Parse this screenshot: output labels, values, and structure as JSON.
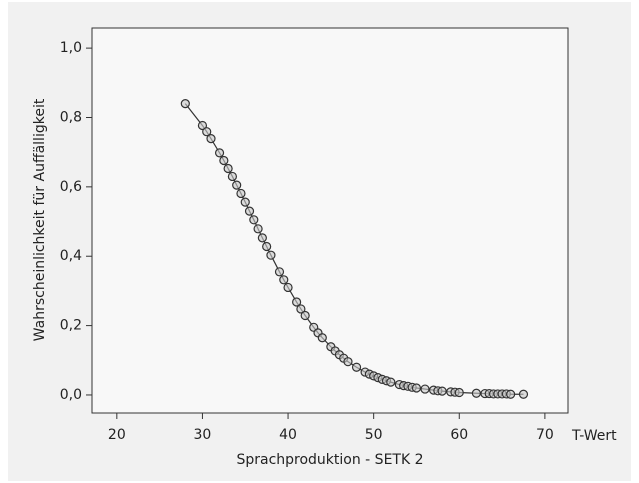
{
  "chart_data": {
    "type": "line",
    "y_label": "Wahrscheinlichkeit für Auffälligkeit",
    "x_label": "Sprachproduktion - SETK 2",
    "x_unit": "T-Wert",
    "x": [
      28,
      30,
      30.5,
      31,
      32,
      32.5,
      33,
      33.5,
      34,
      34.5,
      35,
      35.5,
      36,
      36.5,
      37,
      37.5,
      38,
      39,
      39.5,
      40,
      41,
      41.5,
      42,
      43,
      43.5,
      44,
      45,
      45.5,
      46,
      46.5,
      47,
      48,
      49,
      49.5,
      50,
      50.5,
      51,
      51.5,
      52,
      53,
      53.5,
      54,
      54.5,
      55,
      56,
      57,
      57.5,
      58,
      59,
      59.5,
      60,
      62,
      63,
      63.5,
      64,
      64.5,
      65,
      65.5,
      66,
      67.5
    ],
    "series": [
      {
        "color": "#333333",
        "values": [
          0.84,
          0.777,
          0.759,
          0.739,
          0.698,
          0.676,
          0.653,
          0.63,
          0.605,
          0.581,
          0.556,
          0.53,
          0.505,
          0.479,
          0.453,
          0.428,
          0.403,
          0.355,
          0.332,
          0.31,
          0.268,
          0.248,
          0.229,
          0.195,
          0.179,
          0.165,
          0.139,
          0.127,
          0.116,
          0.106,
          0.096,
          0.08,
          0.066,
          0.06,
          0.055,
          0.05,
          0.045,
          0.041,
          0.037,
          0.03,
          0.027,
          0.025,
          0.022,
          0.02,
          0.017,
          0.014,
          0.012,
          0.011,
          0.009,
          0.008,
          0.007,
          0.005,
          0.004,
          0.004,
          0.003,
          0.003,
          0.003,
          0.003,
          0.002,
          0.002
        ]
      }
    ],
    "xlim": [
      17.1,
      72.7
    ],
    "ylim": [
      -0.052,
      1.058
    ],
    "xticks": [
      20,
      30,
      40,
      50,
      60,
      70
    ],
    "yticks": [
      {
        "value": 0,
        "label": "0,0"
      },
      {
        "value": 0.2,
        "label": "0,2"
      },
      {
        "value": 0.4,
        "label": "0,4"
      },
      {
        "value": 0.6,
        "label": "0,6"
      },
      {
        "value": 0.8,
        "label": "0,8"
      },
      {
        "value": 1,
        "label": "1,0"
      }
    ],
    "marker": "circle"
  }
}
